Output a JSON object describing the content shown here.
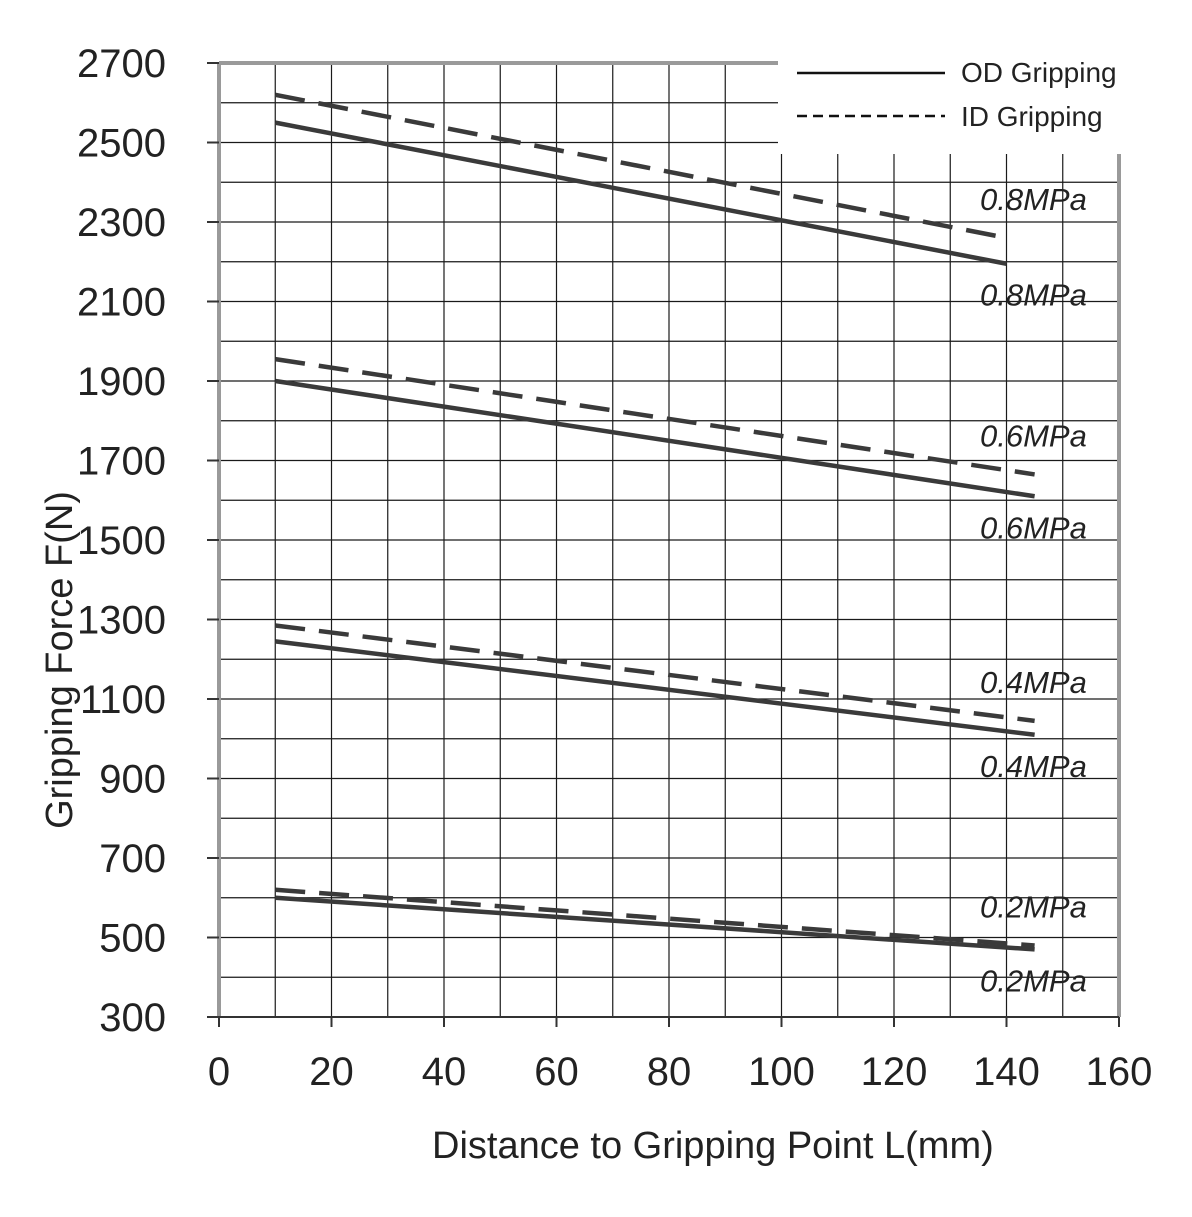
{
  "chart_data": {
    "type": "line",
    "xlabel": "Distance to Gripping Point   L(mm)",
    "ylabel": "Gripping Force   F(N)",
    "xlim": [
      0,
      160
    ],
    "ylim": [
      300,
      2700
    ],
    "x_ticks": [
      0,
      20,
      40,
      60,
      80,
      100,
      120,
      140,
      160
    ],
    "y_ticks": [
      300,
      500,
      700,
      900,
      1100,
      1300,
      1500,
      1700,
      1900,
      2100,
      2300,
      2500,
      2700
    ],
    "x_grid_step": 10,
    "y_grid_step": 100,
    "grid": true,
    "legend": {
      "position": "top-right",
      "entries": [
        {
          "name": "OD Gripping",
          "style": "solid"
        },
        {
          "name": "ID Gripping",
          "style": "dashed"
        }
      ]
    },
    "series": [
      {
        "name": "OD Gripping",
        "label": "0.8MPa",
        "style": "solid",
        "x": [
          10,
          140
        ],
        "y": [
          2550,
          2195
        ]
      },
      {
        "name": "ID Gripping",
        "label": "0.8MPa",
        "style": "dashed",
        "x": [
          10,
          140
        ],
        "y": [
          2620,
          2260
        ]
      },
      {
        "name": "OD Gripping",
        "label": "0.6MPa",
        "style": "solid",
        "x": [
          10,
          145
        ],
        "y": [
          1900,
          1610
        ]
      },
      {
        "name": "ID Gripping",
        "label": "0.6MPa",
        "style": "dashed",
        "x": [
          10,
          145
        ],
        "y": [
          1955,
          1665
        ]
      },
      {
        "name": "OD Gripping",
        "label": "0.4MPa",
        "style": "solid",
        "x": [
          10,
          145
        ],
        "y": [
          1245,
          1010
        ]
      },
      {
        "name": "ID Gripping",
        "label": "0.4MPa",
        "style": "dashed",
        "x": [
          10,
          145
        ],
        "y": [
          1285,
          1045
        ]
      },
      {
        "name": "OD Gripping",
        "label": "0.2MPa",
        "style": "solid",
        "x": [
          10,
          145
        ],
        "y": [
          600,
          470
        ]
      },
      {
        "name": "ID Gripping",
        "label": "0.2MPa",
        "style": "dashed",
        "x": [
          10,
          145
        ],
        "y": [
          620,
          480
        ]
      }
    ],
    "colors": {
      "line": "#3a3a3a",
      "grid": "#1a1a1a",
      "frame": "#9a9a9a",
      "background": "#ffffff"
    }
  }
}
